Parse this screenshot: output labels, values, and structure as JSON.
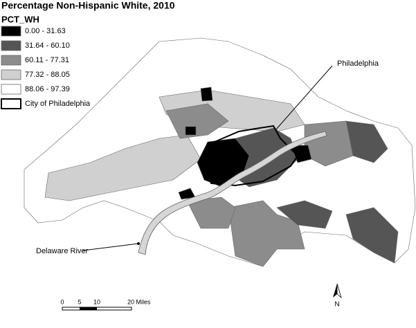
{
  "title": "Percentage Non-Hispanic White, 2010",
  "legend": {
    "title": "PCT_WH",
    "items": [
      {
        "label": "0.00 - 31.63",
        "color": "#000000"
      },
      {
        "label": "31.64 - 60.10",
        "color": "#555555"
      },
      {
        "label": "60.11 - 77.31",
        "color": "#8c8c8c"
      },
      {
        "label": "77.32 - 88.05",
        "color": "#d0d0d0"
      },
      {
        "label": "88.06 - 97.39",
        "color": "#ffffff"
      }
    ],
    "boundary": "City of Philadelphia"
  },
  "annotations": {
    "city": "Philadelphia",
    "river": "Delaware River"
  },
  "scale_bar": {
    "labels": [
      "0",
      "5",
      "10",
      "20 Miles"
    ]
  },
  "north_arrow": "N"
}
